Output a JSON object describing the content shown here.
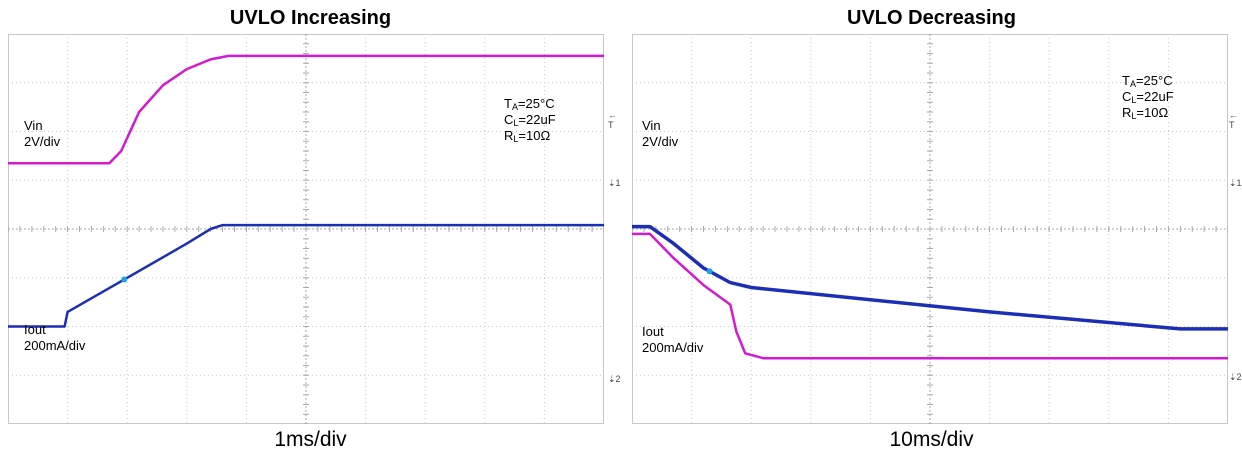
{
  "colors": {
    "vin": "#1c2fb4",
    "iout": "#d21ad2",
    "cursor": "#1fa3e6",
    "grid": "#c8c8c8"
  },
  "chart_data": [
    {
      "type": "line",
      "title": "UVLO Increasing",
      "xlabel": "1ms/div",
      "x_divisions": 10,
      "y_divisions": 8,
      "annotations": [
        "T_A=25°C",
        "C_L=22uF",
        "R_L=10Ω"
      ],
      "series": [
        {
          "name": "Vin",
          "scale": "2V/div",
          "x": [
            0,
            0.95,
            1.0,
            2.0,
            3.0,
            3.4,
            3.6,
            10
          ],
          "y": [
            6.0,
            6.0,
            5.7,
            5.0,
            4.3,
            4.0,
            3.92,
            3.92
          ]
        },
        {
          "name": "Iout",
          "scale": "200mA/div",
          "x": [
            0,
            1.7,
            1.9,
            2.2,
            2.6,
            3.0,
            3.4,
            3.7,
            10
          ],
          "y": [
            2.65,
            2.65,
            2.4,
            1.6,
            1.05,
            0.72,
            0.52,
            0.45,
            0.45
          ]
        }
      ],
      "cursor": {
        "x": 1.95
      },
      "markers": [
        "T",
        "1",
        "2"
      ]
    },
    {
      "type": "line",
      "title": "UVLO Decreasing",
      "xlabel": "10ms/div",
      "x_divisions": 10,
      "y_divisions": 8,
      "annotations": [
        "T_A=25°C",
        "C_L=22uF",
        "R_L=10Ω"
      ],
      "series": [
        {
          "name": "Vin",
          "scale": "2V/div",
          "x": [
            0,
            0.3,
            0.7,
            1.2,
            1.65,
            2.0,
            6.0,
            9.2,
            10
          ],
          "y": [
            3.95,
            3.95,
            4.3,
            4.8,
            5.1,
            5.2,
            5.7,
            6.05,
            6.05
          ]
        },
        {
          "name": "Iout",
          "scale": "200mA/div",
          "x": [
            0,
            0.3,
            0.7,
            1.2,
            1.65,
            1.75,
            1.9,
            2.2,
            10
          ],
          "y": [
            4.1,
            4.1,
            4.6,
            5.15,
            5.55,
            6.1,
            6.55,
            6.65,
            6.65
          ]
        }
      ],
      "cursor": {
        "x": 1.3
      },
      "markers": [
        "T",
        "1",
        "2"
      ]
    }
  ]
}
